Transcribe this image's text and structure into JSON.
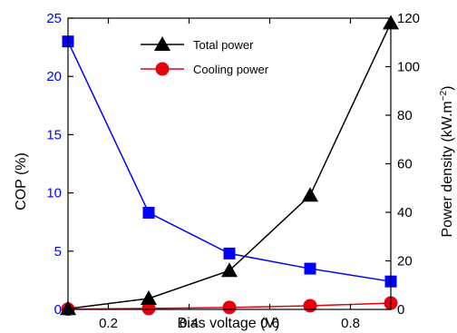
{
  "chart_data": {
    "type": "line",
    "xlabel": "Bias voltage (V)",
    "xlim": [
      0.1,
      0.9
    ],
    "xticks": [
      "0.2",
      "0.4",
      "0.6",
      "0.8"
    ],
    "y_left": {
      "label": "COP (%)",
      "lim": [
        0,
        25
      ],
      "ticks": [
        "0",
        "5",
        "10",
        "15",
        "20",
        "25"
      ],
      "color": "#0000ff"
    },
    "y_right": {
      "label_main": "Power density (kW.m",
      "label_sup": "−2",
      "label_end": ")",
      "lim": [
        0,
        120
      ],
      "ticks": [
        "0",
        "20",
        "40",
        "60",
        "80",
        "100",
        "120"
      ],
      "color": "#000000"
    },
    "series": [
      {
        "axis": "left",
        "color": "#0000ff",
        "marker": "square",
        "x": [
          0.1,
          0.3,
          0.5,
          0.7,
          0.9
        ],
        "y": [
          23.0,
          8.3,
          4.8,
          3.5,
          2.4
        ]
      },
      {
        "name": "Total power",
        "axis": "right",
        "color": "#000000",
        "marker": "triangle",
        "x": [
          0.1,
          0.3,
          0.5,
          0.7,
          0.9
        ],
        "y": [
          0.3,
          4.5,
          16.0,
          47.0,
          118.0
        ]
      },
      {
        "name": "Cooling power",
        "axis": "right",
        "color": "#e8000b",
        "marker": "circle",
        "x": [
          0.1,
          0.3,
          0.5,
          0.7,
          0.9
        ],
        "y": [
          0.1,
          0.4,
          0.8,
          1.5,
          2.6
        ]
      }
    ],
    "legend": {
      "placement": "top-left",
      "items": [
        "Total power",
        "Cooling power"
      ]
    }
  }
}
